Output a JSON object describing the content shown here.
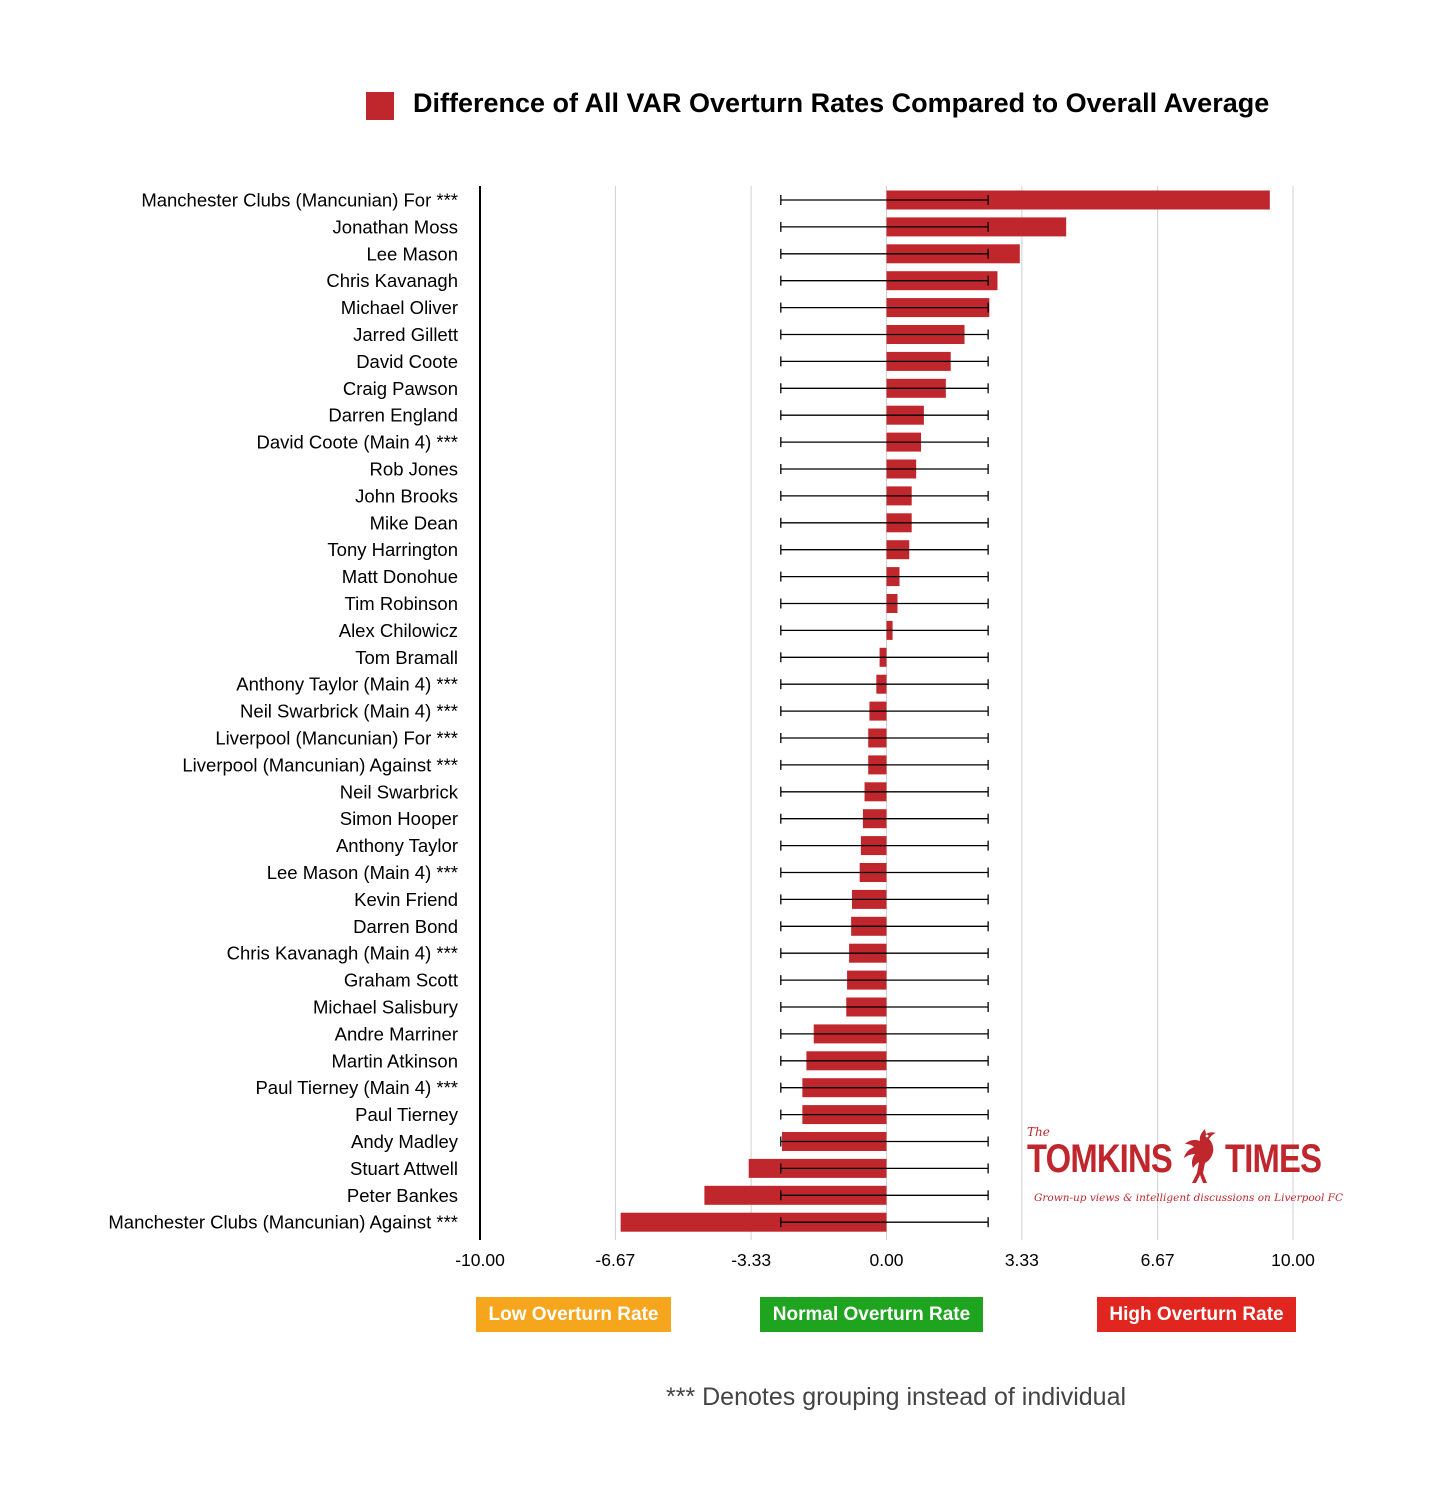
{
  "legend": {
    "title": "Difference of All VAR Overturn Rates Compared to Overall Average",
    "color": "#c0272d"
  },
  "zones": {
    "low": {
      "label": "Low Overturn Rate",
      "color": "#f5a61d"
    },
    "normal": {
      "label": "Normal Overturn Rate",
      "color": "#1ea41e"
    },
    "high": {
      "label": "High Overturn Rate",
      "color": "#e0261f"
    }
  },
  "footnote": "*** Denotes grouping instead of individual",
  "logo": {
    "the": "The",
    "word1": "TOMKINS",
    "word2": "TIMES",
    "tagline": "Grown-up views & intelligent discussions on Liverpool FC"
  },
  "chart_data": {
    "type": "bar",
    "orientation": "horizontal",
    "xlim": [
      -10,
      10
    ],
    "x_ticks": [
      -10,
      -6.67,
      -3.33,
      0,
      3.33,
      6.67,
      10
    ],
    "x_tick_labels": [
      "-10.00",
      "-6.67",
      "-3.33",
      "0.00",
      "3.33",
      "6.67",
      "10.00"
    ],
    "grid": true,
    "error_range": [
      -2.6,
      2.5
    ],
    "bar_color": "#c0272d",
    "categories": [
      "Manchester Clubs (Mancunian) For ***",
      "Jonathan Moss",
      "Lee Mason",
      "Chris Kavanagh",
      "Michael Oliver",
      "Jarred Gillett",
      "David Coote",
      "Craig Pawson",
      "Darren England",
      "David Coote (Main 4) ***",
      "Rob Jones",
      "John Brooks",
      "Mike Dean",
      "Tony Harrington",
      "Matt Donohue",
      "Tim Robinson",
      "Alex Chilowicz",
      "Tom Bramall",
      "Anthony Taylor (Main 4) ***",
      "Neil Swarbrick (Main 4) ***",
      "Liverpool (Mancunian) For ***",
      "Liverpool (Mancunian) Against ***",
      "Neil Swarbrick",
      "Simon Hooper",
      "Anthony Taylor",
      "Lee Mason (Main 4) ***",
      "Kevin Friend",
      "Darren Bond",
      "Chris Kavanagh (Main 4) ***",
      "Graham Scott",
      "Michael Salisbury",
      "Andre Marriner",
      "Martin Atkinson",
      "Paul Tierney (Main 4) ***",
      "Paul Tierney",
      "Andy Madley",
      "Stuart Attwell",
      "Peter Bankes",
      "Manchester Clubs (Mancunian) Against ***"
    ],
    "values": [
      9.43,
      4.42,
      3.28,
      2.73,
      2.53,
      1.92,
      1.58,
      1.46,
      0.92,
      0.85,
      0.73,
      0.62,
      0.62,
      0.56,
      0.32,
      0.27,
      0.15,
      -0.17,
      -0.25,
      -0.42,
      -0.45,
      -0.45,
      -0.54,
      -0.58,
      -0.63,
      -0.66,
      -0.85,
      -0.87,
      -0.92,
      -0.97,
      -0.99,
      -1.79,
      -1.97,
      -2.07,
      -2.07,
      -2.57,
      -3.39,
      -4.48,
      -6.54
    ]
  }
}
